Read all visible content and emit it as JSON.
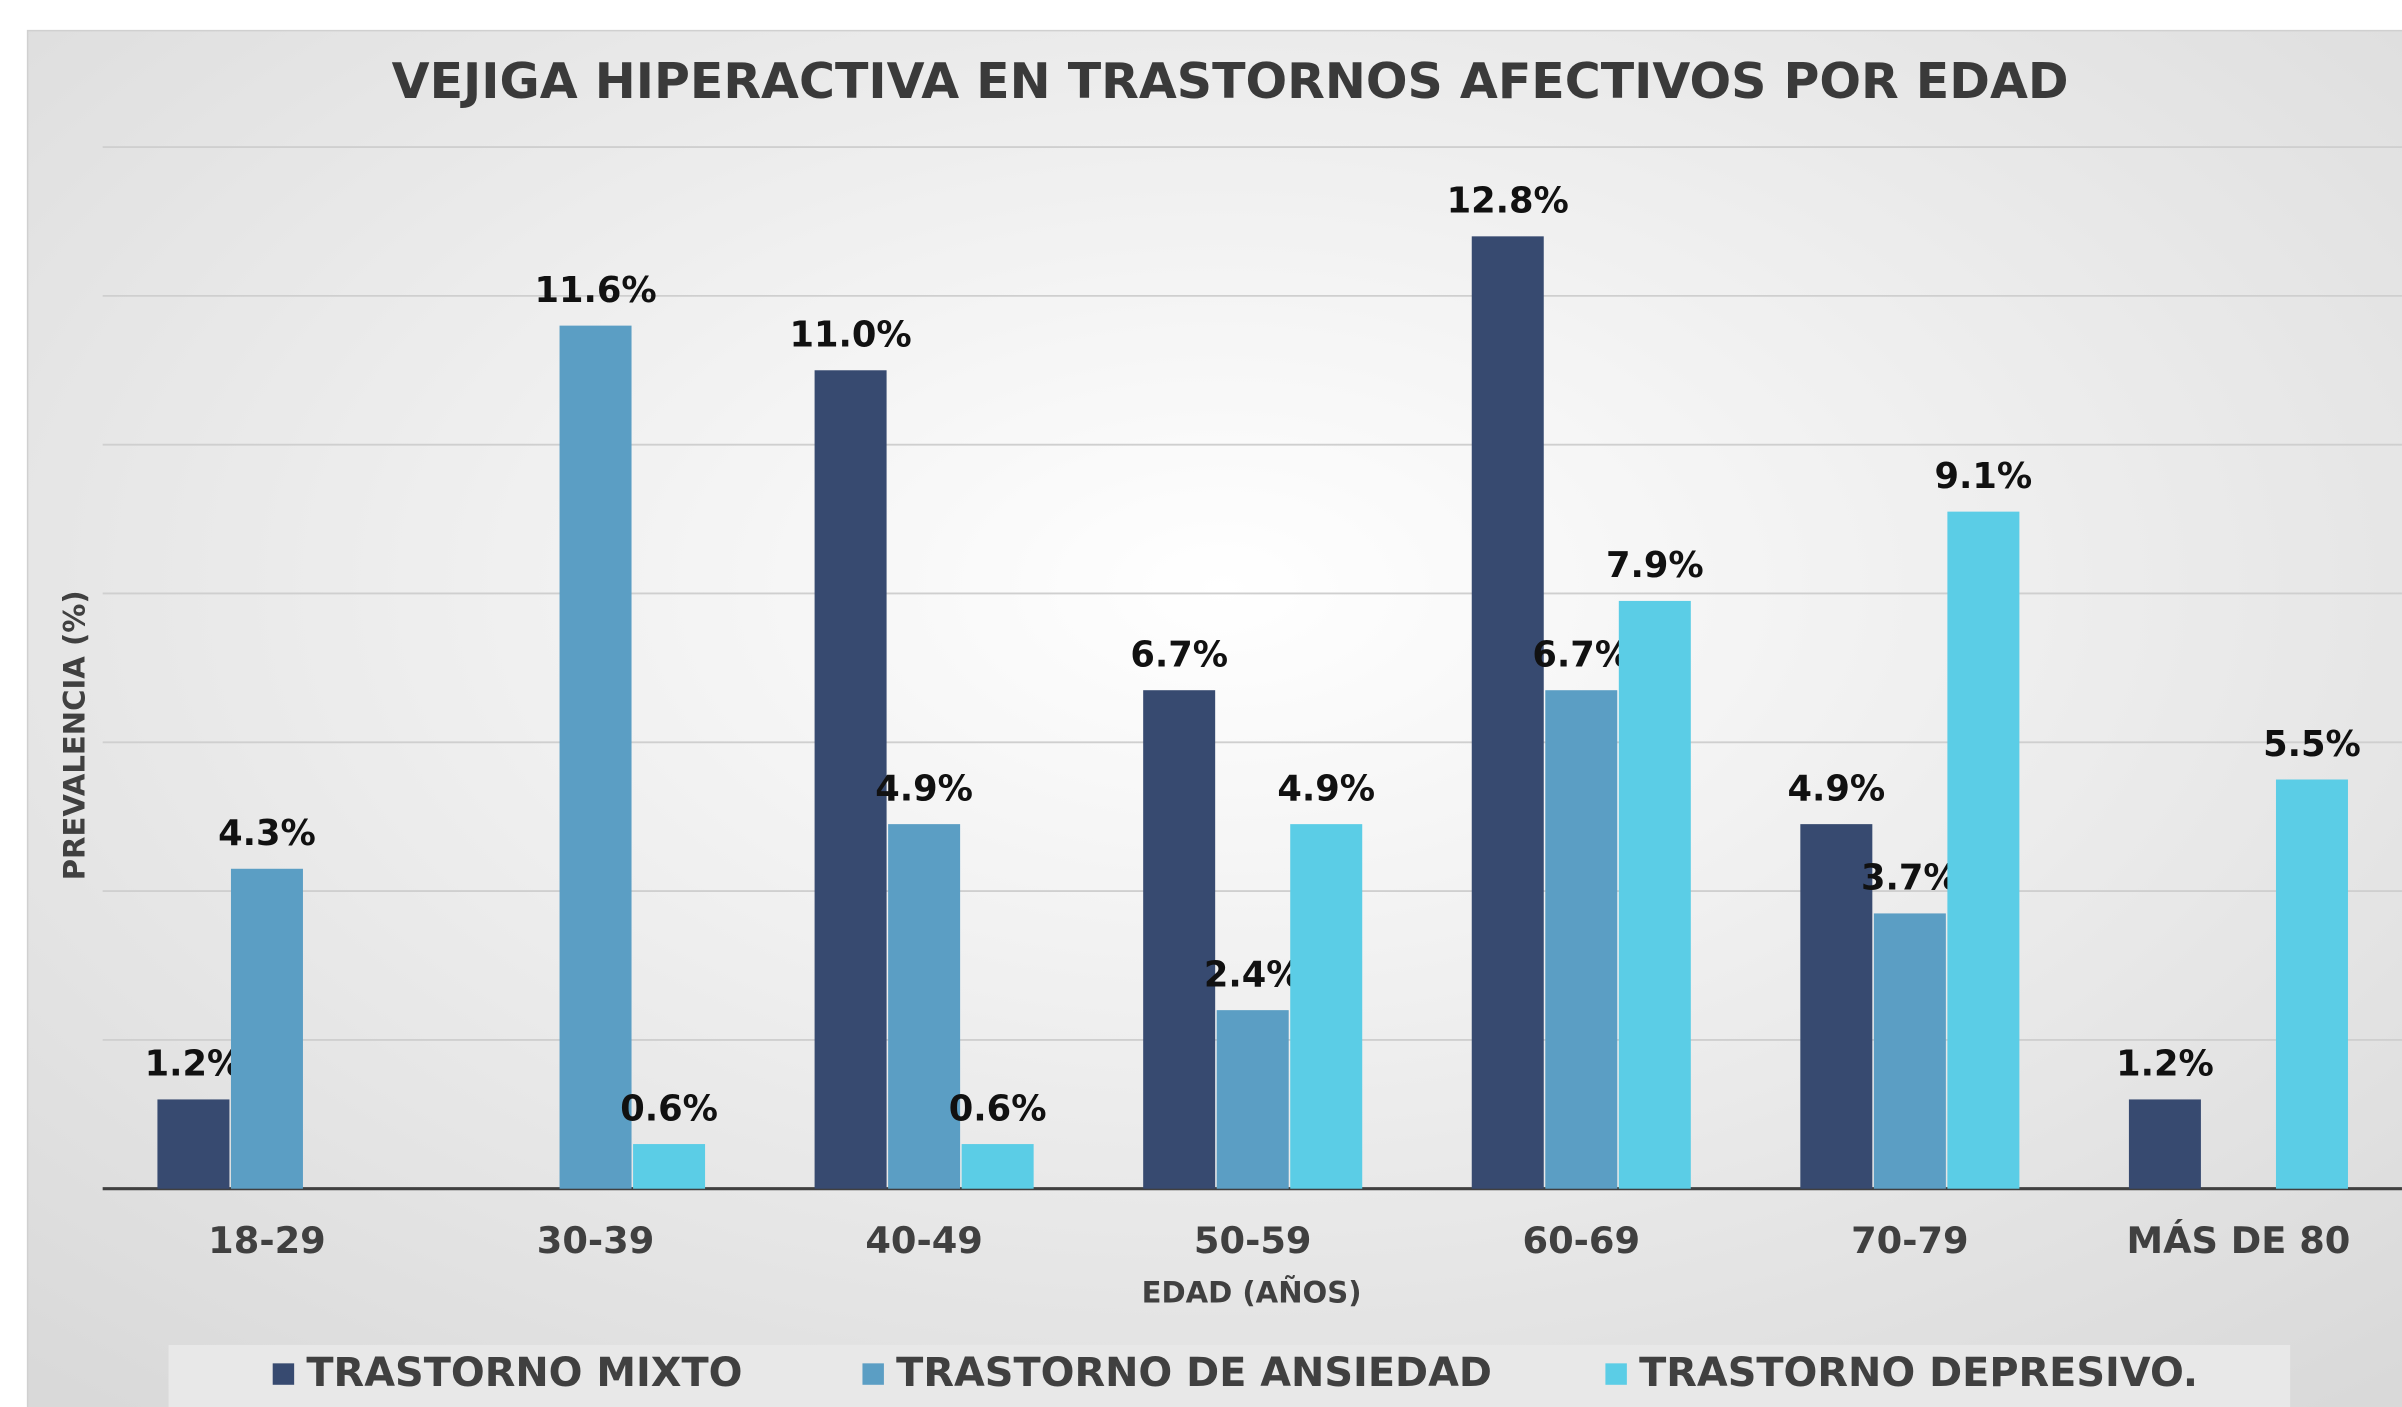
{
  "chart_data": {
    "type": "bar",
    "title": "VEJIGA HIPERACTIVA EN TRASTORNOS AFECTIVOS POR EDAD",
    "x_label": "EDAD (AÑOS)",
    "y_label": "PREVALENCIA (%)",
    "categories": [
      "18-29",
      "30-39",
      "40-49",
      "50-59",
      "60-69",
      "70-79",
      "MÁS DE 80"
    ],
    "series": [
      {
        "name": "TRASTORNO MIXTO",
        "color": "#374a70",
        "values": [
          1.2,
          null,
          11.0,
          6.7,
          12.8,
          4.9,
          1.2
        ],
        "value_labels": [
          "1.2%",
          null,
          "11.0%",
          "6.7%",
          "12.8%",
          "4.9%",
          "1.2%"
        ]
      },
      {
        "name": "TRASTORNO DE ANSIEDAD",
        "color": "#5b9ec4",
        "values": [
          4.3,
          11.6,
          4.9,
          2.4,
          6.7,
          3.7,
          null
        ],
        "value_labels": [
          "4.3%",
          "11.6%",
          "4.9%",
          "2.4%",
          "6.7%",
          "3.7%",
          null
        ]
      },
      {
        "name": "TRASTORNO DEPRESIVO.",
        "color": "#5bcde6",
        "values": [
          null,
          0.6,
          0.6,
          4.9,
          7.9,
          9.1,
          5.5
        ],
        "value_labels": [
          null,
          "0.6%",
          "0.6%",
          "4.9%",
          "7.9%",
          "9.1%",
          "5.5%"
        ]
      }
    ],
    "ylim": [
      0,
      14
    ],
    "yticks": [
      0,
      2,
      4,
      6,
      8,
      10,
      12,
      14
    ],
    "grid": true,
    "legend": "bottom"
  }
}
